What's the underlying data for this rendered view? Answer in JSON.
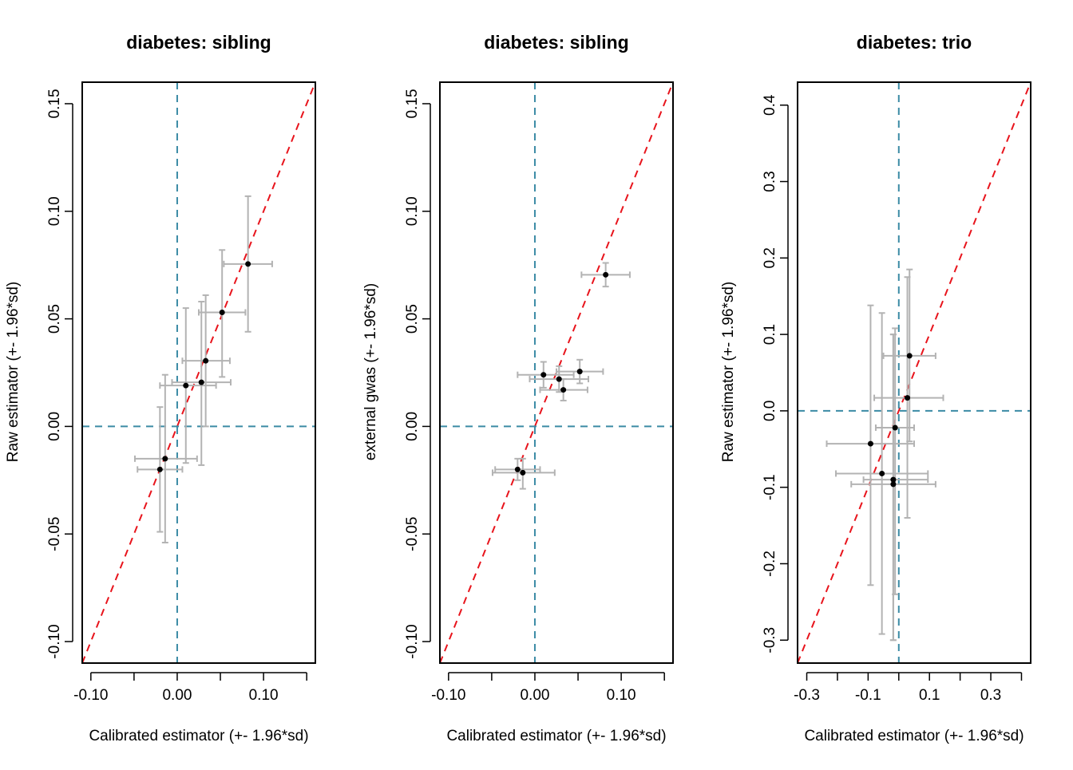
{
  "chart_data": [
    {
      "type": "scatter",
      "title": "diabetes: sibling",
      "xlabel": "Calibrated estimator (+- 1.96*sd)",
      "ylabel": "Raw estimator (+- 1.96*sd)",
      "xlim": [
        -0.11,
        0.16
      ],
      "ylim": [
        -0.11,
        0.16
      ],
      "xticks": [
        -0.1,
        -0.05,
        0.0,
        0.05,
        0.1,
        0.15
      ],
      "xtick_labels": [
        "-0.10",
        "",
        "0.00",
        "",
        "0.10",
        ""
      ],
      "yticks": [
        -0.1,
        -0.05,
        0.0,
        0.05,
        0.1,
        0.15
      ],
      "ytick_labels": [
        "-0.10",
        "-0.05",
        "0.00",
        "0.05",
        "0.10",
        "0.15"
      ],
      "reference_lines": {
        "identity": "y = x",
        "vertical_at_x": 0,
        "horizontal_at_y": 0
      },
      "colors": {
        "points": "#000000",
        "error_bars": "#b3b3b3",
        "identity_line": "#e8141c",
        "zero_lines": "#3b8ba5"
      },
      "points": [
        {
          "x": 0.082,
          "y": 0.0755,
          "xlo": 0.054,
          "xhi": 0.11,
          "ylo": 0.044,
          "yhi": 0.107
        },
        {
          "x": 0.052,
          "y": 0.053,
          "xlo": 0.025,
          "xhi": 0.079,
          "ylo": 0.023,
          "yhi": 0.082
        },
        {
          "x": 0.033,
          "y": 0.0305,
          "xlo": 0.006,
          "xhi": 0.061,
          "ylo": 0.0,
          "yhi": 0.061
        },
        {
          "x": 0.028,
          "y": 0.0205,
          "xlo": -0.006,
          "xhi": 0.062,
          "ylo": -0.018,
          "yhi": 0.058
        },
        {
          "x": 0.01,
          "y": 0.019,
          "xlo": -0.02,
          "xhi": 0.045,
          "ylo": -0.017,
          "yhi": 0.055
        },
        {
          "x": -0.014,
          "y": -0.015,
          "xlo": -0.049,
          "xhi": 0.023,
          "ylo": -0.054,
          "yhi": 0.024
        },
        {
          "x": -0.02,
          "y": -0.02,
          "xlo": -0.046,
          "xhi": 0.006,
          "ylo": -0.049,
          "yhi": 0.009
        }
      ]
    },
    {
      "type": "scatter",
      "title": "diabetes: sibling",
      "xlabel": "Calibrated estimator (+- 1.96*sd)",
      "ylabel": "external gwas (+- 1.96*sd)",
      "xlim": [
        -0.11,
        0.16
      ],
      "ylim": [
        -0.11,
        0.16
      ],
      "xticks": [
        -0.1,
        -0.05,
        0.0,
        0.05,
        0.1,
        0.15
      ],
      "xtick_labels": [
        "-0.10",
        "",
        "0.00",
        "",
        "0.10",
        ""
      ],
      "yticks": [
        -0.1,
        -0.05,
        0.0,
        0.05,
        0.1,
        0.15
      ],
      "ytick_labels": [
        "-0.10",
        "-0.05",
        "0.00",
        "0.05",
        "0.10",
        "0.15"
      ],
      "reference_lines": {
        "identity": "y = x",
        "vertical_at_x": 0,
        "horizontal_at_y": 0
      },
      "colors": {
        "points": "#000000",
        "error_bars": "#b3b3b3",
        "identity_line": "#e8141c",
        "zero_lines": "#3b8ba5"
      },
      "points": [
        {
          "x": 0.082,
          "y": 0.0705,
          "xlo": 0.054,
          "xhi": 0.11,
          "ylo": 0.065,
          "yhi": 0.076
        },
        {
          "x": 0.052,
          "y": 0.0255,
          "xlo": 0.025,
          "xhi": 0.079,
          "ylo": 0.02,
          "yhi": 0.031
        },
        {
          "x": 0.01,
          "y": 0.024,
          "xlo": -0.02,
          "xhi": 0.045,
          "ylo": 0.018,
          "yhi": 0.03
        },
        {
          "x": 0.028,
          "y": 0.022,
          "xlo": -0.006,
          "xhi": 0.062,
          "ylo": 0.016,
          "yhi": 0.028
        },
        {
          "x": 0.033,
          "y": 0.017,
          "xlo": 0.006,
          "xhi": 0.061,
          "ylo": 0.012,
          "yhi": 0.022
        },
        {
          "x": -0.014,
          "y": -0.0215,
          "xlo": -0.049,
          "xhi": 0.023,
          "ylo": -0.029,
          "yhi": -0.015
        },
        {
          "x": -0.02,
          "y": -0.02,
          "xlo": -0.046,
          "xhi": 0.006,
          "ylo": -0.025,
          "yhi": -0.015
        }
      ]
    },
    {
      "type": "scatter",
      "title": "diabetes: trio",
      "xlabel": "Calibrated estimator (+- 1.96*sd)",
      "ylabel": "Raw estimator (+- 1.96*sd)",
      "xlim": [
        -0.33,
        0.43
      ],
      "ylim": [
        -0.33,
        0.43
      ],
      "xticks": [
        -0.3,
        -0.2,
        -0.1,
        0.0,
        0.1,
        0.2,
        0.3,
        0.4
      ],
      "xtick_labels": [
        "-0.3",
        "",
        "-0.1",
        "",
        "0.1",
        "",
        "0.3",
        ""
      ],
      "yticks": [
        -0.3,
        -0.2,
        -0.1,
        0.0,
        0.1,
        0.2,
        0.3,
        0.4
      ],
      "ytick_labels": [
        "-0.3",
        "-0.2",
        "-0.1",
        "0.0",
        "0.1",
        "0.2",
        "0.3",
        "0.4"
      ],
      "reference_lines": {
        "identity": "y = x",
        "vertical_at_x": 0,
        "horizontal_at_y": 0
      },
      "colors": {
        "points": "#000000",
        "error_bars": "#b3b3b3",
        "identity_line": "#e8141c",
        "zero_lines": "#3b8ba5"
      },
      "points": [
        {
          "x": 0.035,
          "y": 0.072,
          "xlo": -0.05,
          "xhi": 0.12,
          "ylo": -0.04,
          "yhi": 0.185
        },
        {
          "x": 0.028,
          "y": 0.017,
          "xlo": -0.08,
          "xhi": 0.145,
          "ylo": -0.14,
          "yhi": 0.175
        },
        {
          "x": -0.012,
          "y": -0.022,
          "xlo": -0.075,
          "xhi": 0.05,
          "ylo": -0.24,
          "yhi": 0.108
        },
        {
          "x": -0.092,
          "y": -0.043,
          "xlo": -0.235,
          "xhi": 0.05,
          "ylo": -0.228,
          "yhi": 0.138
        },
        {
          "x": -0.055,
          "y": -0.082,
          "xlo": -0.205,
          "xhi": 0.095,
          "ylo": -0.292,
          "yhi": 0.128
        },
        {
          "x": -0.018,
          "y": -0.09,
          "xlo": -0.115,
          "xhi": 0.095,
          "ylo": -0.3,
          "yhi": 0.1
        },
        {
          "x": -0.018,
          "y": -0.096,
          "xlo": -0.155,
          "xhi": 0.12,
          "ylo": -0.3,
          "yhi": 0.1
        }
      ]
    }
  ]
}
